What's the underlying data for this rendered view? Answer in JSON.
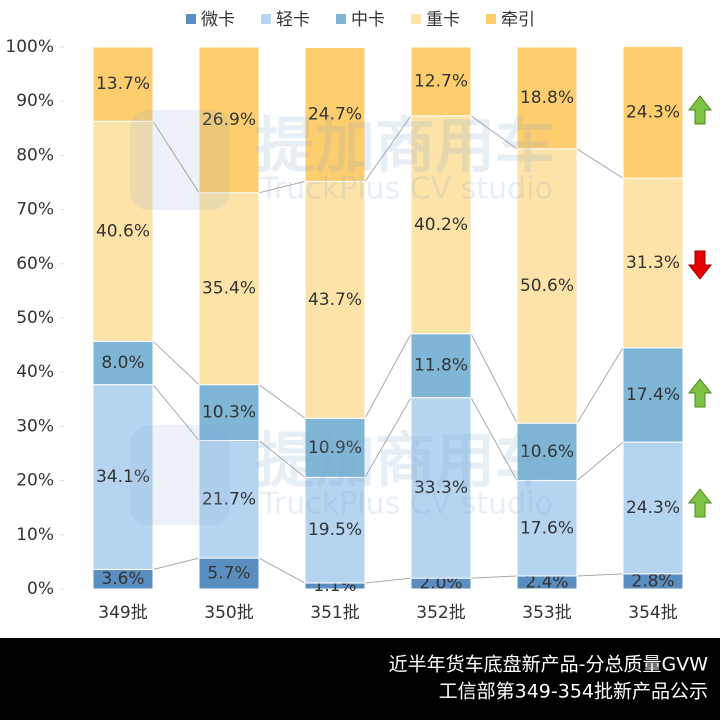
{
  "chart_data": {
    "type": "stacked_bar_percent",
    "categories": [
      "349批",
      "350批",
      "351批",
      "352批",
      "353批",
      "354批"
    ],
    "series": [
      {
        "name": "微卡",
        "color": "#5a8ec0",
        "values": [
          3.6,
          5.7,
          1.1,
          2.0,
          2.4,
          2.8
        ],
        "value_labels": [
          "3.6%",
          "5.7%",
          "1.1%",
          "2.0%",
          "2.4%",
          "2.8%"
        ]
      },
      {
        "name": "轻卡",
        "color": "#b5d4ef",
        "values": [
          34.1,
          21.7,
          19.5,
          33.3,
          17.6,
          24.3
        ],
        "value_labels": [
          "34.1%",
          "21.7%",
          "19.5%",
          "33.3%",
          "17.6%",
          "24.3%"
        ]
      },
      {
        "name": "中卡",
        "color": "#7fb6d6",
        "values": [
          8.0,
          10.3,
          10.9,
          11.8,
          10.6,
          17.4
        ],
        "value_labels": [
          "8.0%",
          "10.3%",
          "10.9%",
          "11.8%",
          "10.6%",
          "17.4%"
        ]
      },
      {
        "name": "重卡",
        "color": "#fde3a8",
        "values": [
          40.6,
          35.4,
          43.7,
          40.2,
          50.6,
          31.3
        ],
        "value_labels": [
          "40.6%",
          "35.4%",
          "43.7%",
          "40.2%",
          "50.6%",
          "31.3%"
        ]
      },
      {
        "name": "牵引",
        "color": "#fecd6d",
        "values": [
          13.7,
          26.9,
          24.7,
          12.7,
          18.8,
          24.3
        ],
        "value_labels": [
          "13.7%",
          "26.9%",
          "24.7%",
          "12.7%",
          "18.8%",
          "24.3%"
        ]
      }
    ],
    "ylim": [
      0,
      100
    ],
    "yticks": [
      {
        "value": 0,
        "label": "0%"
      },
      {
        "value": 10,
        "label": "10%"
      },
      {
        "value": 20,
        "label": "20%"
      },
      {
        "value": 30,
        "label": "30%"
      },
      {
        "value": 40,
        "label": "40%"
      },
      {
        "value": 50,
        "label": "50%"
      },
      {
        "value": 60,
        "label": "60%"
      },
      {
        "value": 70,
        "label": "70%"
      },
      {
        "value": 80,
        "label": "80%"
      },
      {
        "value": 90,
        "label": "90%"
      },
      {
        "value": 100,
        "label": "100%"
      }
    ],
    "legend": "top",
    "watermark": {
      "name": "提加商用车",
      "subtitle": "TruckPlus CV studio"
    },
    "footer": [
      "近半年货车底盘新产品-分总质量GVW",
      "工信部第349-354批新产品公示"
    ]
  }
}
